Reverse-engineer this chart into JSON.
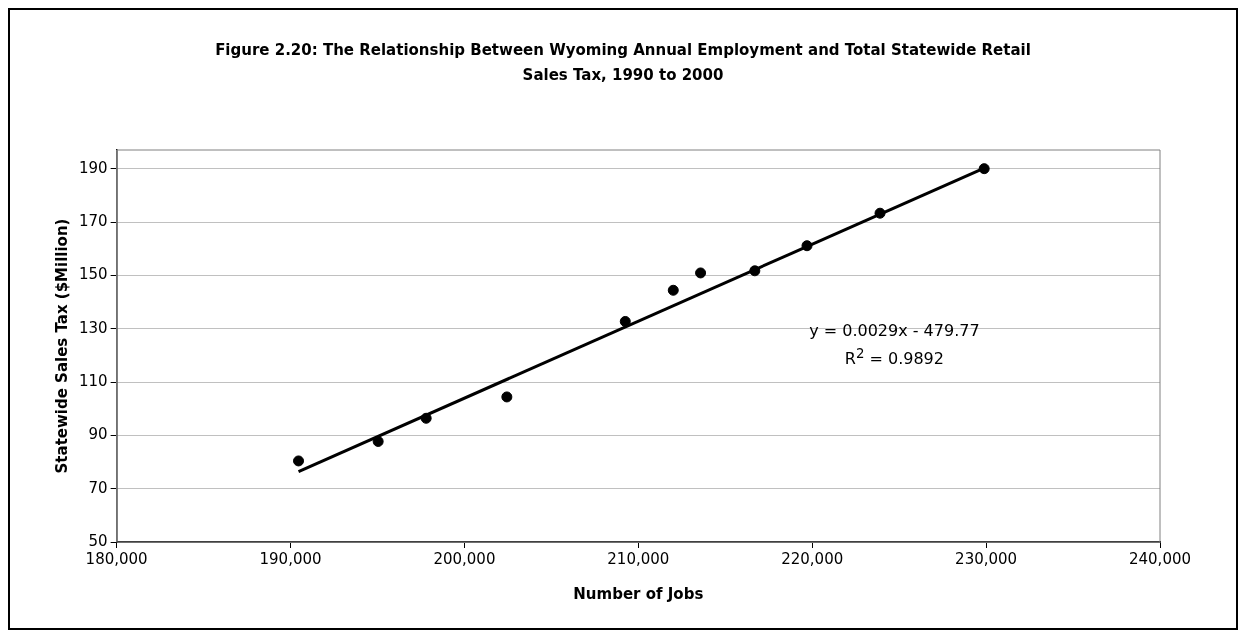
{
  "chart_data": {
    "type": "scatter",
    "title": "Figure 2.20: The Relationship Between Wyoming Annual Employment and Total Statewide Retail Sales Tax, 1990 to 2000",
    "xlabel": "Number of Jobs",
    "ylabel": "Statewide Sales Tax ($Million)",
    "annotations": [
      "y = 0.0029x - 479.77",
      "R$^{2}$ = 0.9892"
    ],
    "series": [
      {
        "color": "#000000",
        "marker": "circle",
        "x": [
          190460,
          195040,
          197800,
          202440,
          209250,
          212010,
          213580,
          216700,
          219700,
          223900,
          229890
        ],
        "values": [
          80.4,
          87.7,
          96.4,
          104.4,
          132.7,
          144.4,
          150.9,
          151.7,
          161.1,
          173.3,
          190
        ]
      },
      {
        "type": "line",
        "color": "#000000",
        "marker": "none",
        "line_style": "solid",
        "x": [
          190460,
          229890
        ],
        "values": [
          76.4,
          190.2
        ]
      }
    ],
    "xlim": [
      180000,
      240000
    ],
    "xticks": [
      {
        "value": 180000,
        "label": "180,000"
      },
      {
        "value": 190000,
        "label": "190,000"
      },
      {
        "value": 200000,
        "label": "200,000"
      },
      {
        "value": 210000,
        "label": "210,000"
      },
      {
        "value": 220000,
        "label": "220,000"
      },
      {
        "value": 230000,
        "label": "230,000"
      },
      {
        "value": 240000,
        "label": "240,000"
      }
    ],
    "ylim": [
      50,
      197
    ],
    "yticks": [
      50,
      70,
      90,
      110,
      130,
      150,
      170,
      190
    ],
    "grid": "y",
    "legend": false
  }
}
